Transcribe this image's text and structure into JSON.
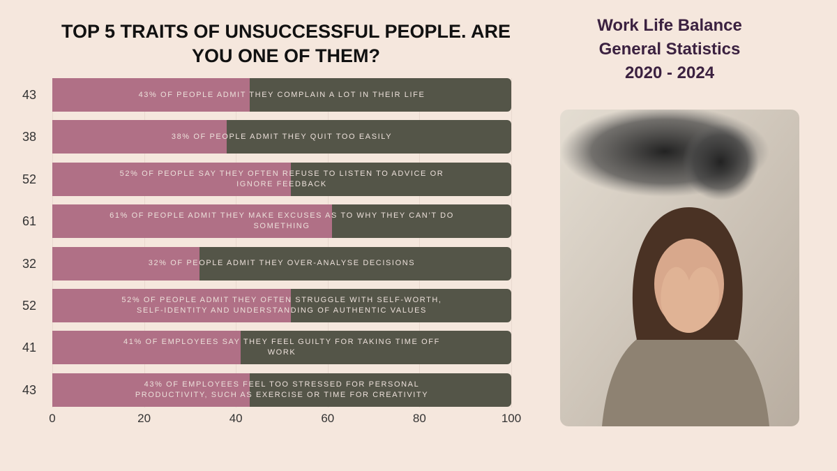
{
  "chart_data": {
    "type": "bar",
    "orientation": "horizontal",
    "title": "TOP 5 TRAITS OF UNSUCCESSFUL PEOPLE. ARE YOU ONE OF THEM?",
    "categories": [
      "43% OF PEOPLE ADMIT THEY COMPLAIN A LOT IN THEIR LIFE",
      "38% OF PEOPLE ADMIT THEY QUIT TOO EASILY",
      "52% OF PEOPLE SAY THEY OFTEN REFUSE TO LISTEN TO ADVICE OR IGNORE FEEDBACK",
      "61% OF PEOPLE ADMIT THEY MAKE EXCUSES AS TO WHY THEY CAN’T DO SOMETHING",
      "32% OF PEOPLE ADMIT THEY OVER-ANALYSE DECISIONS",
      "52% OF PEOPLE ADMIT THEY OFTEN STRUGGLE WITH SELF-WORTH, SELF-IDENTITY AND UNDERSTANDING OF AUTHENTIC VALUES",
      "41% OF EMPLOYEES SAY THEY FEEL GUILTY FOR TAKING TIME OFF WORK",
      "43% OF EMPLOYEES FEEL TOO STRESSED FOR PERSONAL PRODUCTIVITY, SUCH AS EXERCISE OR TIME FOR CREATIVITY"
    ],
    "values": [
      43,
      38,
      52,
      61,
      32,
      52,
      41,
      43
    ],
    "color": "#b07086",
    "xlim": [
      0,
      100
    ],
    "xticks": [
      0,
      20,
      40,
      60,
      80,
      100
    ],
    "grid": true
  },
  "sidebar": {
    "title": [
      "Work Life Balance",
      "General Statistics",
      "2020 - 2024"
    ]
  }
}
